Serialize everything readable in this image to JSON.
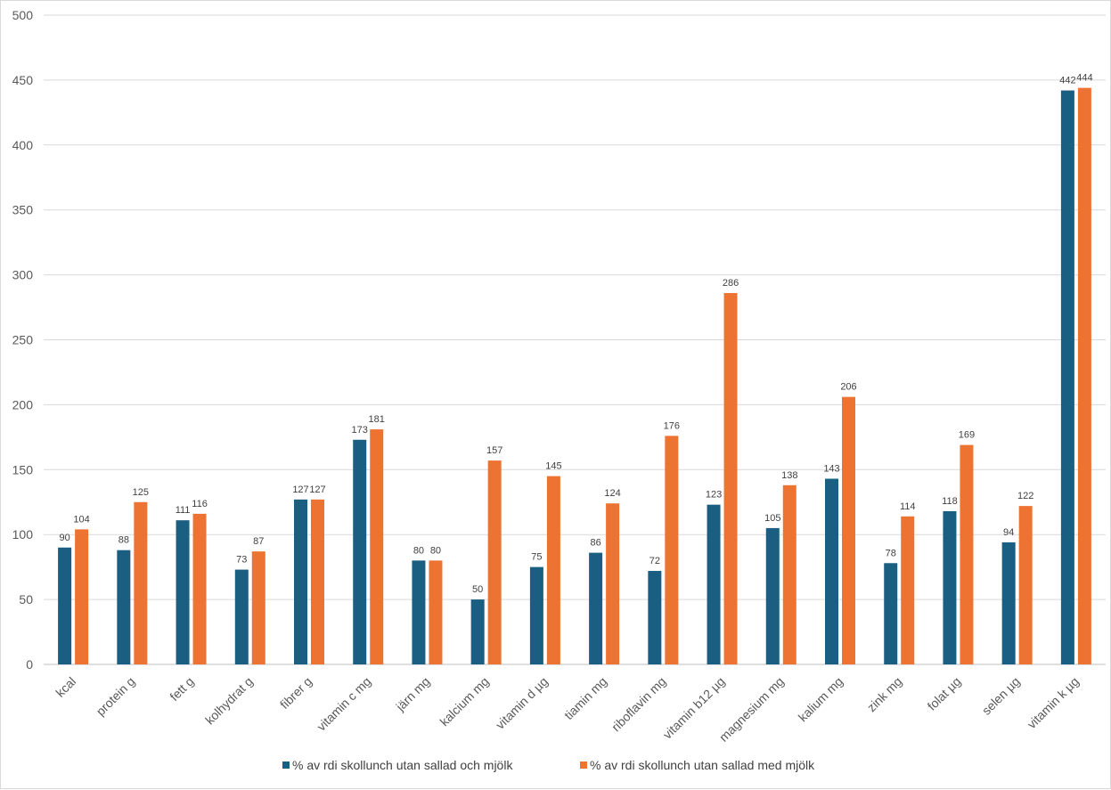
{
  "chart_data": {
    "type": "bar",
    "title": "",
    "xlabel": "",
    "ylabel": "",
    "ylim": [
      0,
      500
    ],
    "yticks": [
      0,
      50,
      100,
      150,
      200,
      250,
      300,
      350,
      400,
      450,
      500
    ],
    "grid": true,
    "legend_position": "bottom",
    "categories": [
      "kcal",
      "protein g",
      "fett g",
      "kolhydrat g",
      "fibrer g",
      "vitamin c mg",
      "järn mg",
      "kalcium mg",
      "vitamin d µg",
      "tiamin mg",
      "riboflavin mg",
      "vitamin b12 µg",
      "magnesium mg",
      "kalium mg",
      "zink mg",
      "folat µg",
      "selen µg",
      "vitamin k µg"
    ],
    "series": [
      {
        "name": "% av rdi skollunch utan sallad och mjölk",
        "color": "#1a5f82",
        "values": [
          90,
          88,
          111,
          73,
          127,
          173,
          80,
          50,
          75,
          86,
          72,
          123,
          105,
          143,
          78,
          118,
          94,
          442
        ]
      },
      {
        "name": "% av rdi skollunch utan sallad med mjölk",
        "color": "#ed7332",
        "values": [
          104,
          125,
          116,
          87,
          127,
          181,
          80,
          157,
          145,
          124,
          176,
          286,
          138,
          206,
          114,
          169,
          122,
          444
        ]
      }
    ]
  }
}
